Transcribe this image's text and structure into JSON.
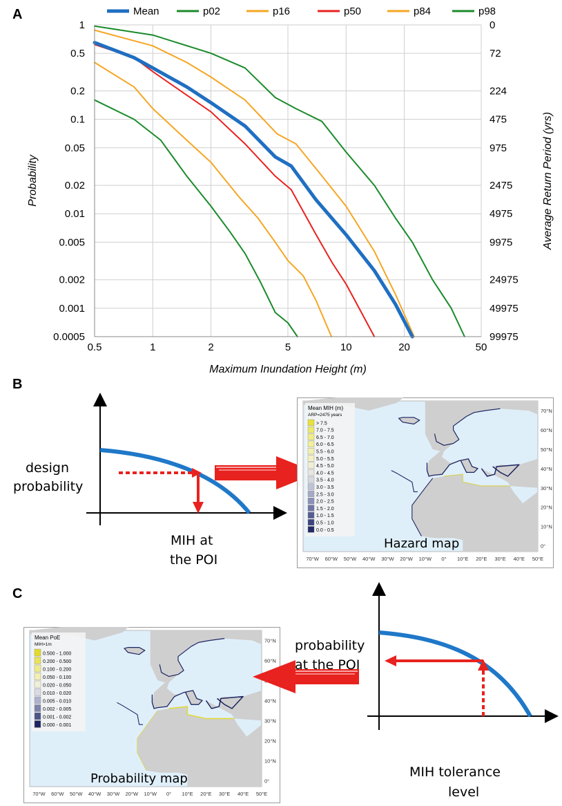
{
  "panel_labels": {
    "a": "A",
    "b": "B",
    "c": "C"
  },
  "chart_data": {
    "type": "line",
    "xscale": "log",
    "yscale": "log",
    "xlim": [
      0.5,
      50
    ],
    "ylim": [
      0.0005,
      1
    ],
    "xlabel": "Maximum Inundation Height (m)",
    "ylabel": "Probability",
    "y2label": "Average Return Period (yrs)",
    "grid": true,
    "legend_position": "top",
    "xticks": [
      0.5,
      1,
      2,
      5,
      10,
      20,
      50
    ],
    "xticklabels": [
      "0.5",
      "1",
      "2",
      "5",
      "10",
      "20",
      "50"
    ],
    "yticks": [
      1,
      0.5,
      0.2,
      0.1,
      0.05,
      0.02,
      0.01,
      0.005,
      0.002,
      0.001,
      0.0005
    ],
    "yticklabels": [
      "1",
      "0.5",
      "0.2",
      "0.1",
      "0.05",
      "0.02",
      "0.01",
      "0.005",
      "0.002",
      "0.001",
      "0.0005"
    ],
    "y2ticklabels": [
      "0",
      "72",
      "224",
      "475",
      "975",
      "2475",
      "4975",
      "9975",
      "24975",
      "49975",
      "99975"
    ],
    "series": [
      {
        "name": "Mean",
        "color": "#1f6fc2",
        "width": 5,
        "x": [
          0.5,
          0.8,
          1.0,
          1.5,
          2.0,
          3.0,
          4.3,
          5.2,
          7.0,
          10.0,
          14.0,
          18.0,
          22.0
        ],
        "y": [
          0.65,
          0.45,
          0.35,
          0.22,
          0.15,
          0.085,
          0.04,
          0.032,
          0.014,
          0.006,
          0.0025,
          0.0011,
          0.0005
        ]
      },
      {
        "name": "p02",
        "color": "#1a8a2a",
        "width": 2,
        "x": [
          0.5,
          0.8,
          1.1,
          1.5,
          2.0,
          2.5,
          3.0,
          3.6,
          4.3,
          5.0,
          5.6
        ],
        "y": [
          0.16,
          0.1,
          0.06,
          0.025,
          0.012,
          0.0065,
          0.0038,
          0.0019,
          0.0009,
          0.0007,
          0.0005
        ]
      },
      {
        "name": "p16",
        "color": "#f5a623",
        "width": 2,
        "x": [
          0.5,
          0.8,
          1.0,
          1.5,
          2.0,
          2.8,
          3.5,
          4.3,
          5.0,
          6.0,
          7.0,
          8.4
        ],
        "y": [
          0.4,
          0.22,
          0.13,
          0.06,
          0.035,
          0.015,
          0.009,
          0.005,
          0.0032,
          0.0022,
          0.0012,
          0.0005
        ]
      },
      {
        "name": "p50",
        "color": "#e8221f",
        "width": 2,
        "x": [
          0.5,
          0.8,
          1.0,
          1.5,
          2.0,
          3.0,
          4.3,
          5.2,
          7.0,
          8.5,
          10.0,
          12.0,
          14.0
        ],
        "y": [
          0.62,
          0.45,
          0.32,
          0.18,
          0.12,
          0.055,
          0.025,
          0.018,
          0.006,
          0.003,
          0.0018,
          0.0009,
          0.0005
        ]
      },
      {
        "name": "p84",
        "color": "#f5a623",
        "width": 2,
        "x": [
          0.5,
          1.0,
          1.5,
          2.0,
          3.0,
          4.4,
          5.5,
          7.0,
          10.0,
          14.0,
          18.0,
          22.5
        ],
        "y": [
          0.88,
          0.6,
          0.4,
          0.28,
          0.16,
          0.07,
          0.055,
          0.03,
          0.012,
          0.004,
          0.0014,
          0.0005
        ]
      },
      {
        "name": "p98",
        "color": "#1a8a2a",
        "width": 2,
        "x": [
          0.5,
          1.0,
          2.0,
          3.0,
          4.3,
          5.5,
          7.5,
          10.0,
          14.0,
          18.0,
          22.0,
          28.0,
          35.0,
          41.0
        ],
        "y": [
          0.97,
          0.78,
          0.5,
          0.35,
          0.17,
          0.13,
          0.095,
          0.045,
          0.02,
          0.009,
          0.005,
          0.002,
          0.001,
          0.0005
        ]
      }
    ]
  },
  "panel_b": {
    "design_probability": [
      "design",
      "probability"
    ],
    "mih_at_poi": [
      "MIH at",
      "the POI"
    ],
    "map_title": "Hazard map",
    "legend_title": "Mean MIH (m)",
    "legend_subtitle": "ARP=2475 years",
    "legend_items": [
      "> 7.5",
      "7.0 - 7.5",
      "6.5 - 7.0",
      "6.0 - 6.5",
      "5.5 - 6.0",
      "5.0 - 5.5",
      "4.5 - 5.0",
      "4.0 - 4.5",
      "3.5 - 4.0",
      "3.0 - 3.5",
      "2.5 - 3.0",
      "2.0 - 2.5",
      "1.5 - 2.0",
      "1.0 - 1.5",
      "0.5 - 1.0",
      "0.0 - 0.5"
    ],
    "legend_colors": [
      "#e8e23a",
      "#ecea6e",
      "#efed86",
      "#f1ef9c",
      "#f2f0b2",
      "#f3f1c4",
      "#f1f0d6",
      "#e8e8e0",
      "#d6d8e2",
      "#bfc3d8",
      "#a5aac9",
      "#8a90b8",
      "#6f76a6",
      "#555d93",
      "#3c4480",
      "#222b68"
    ],
    "lat_labels": [
      "70°N",
      "60°N",
      "50°N",
      "40°N",
      "30°N",
      "20°N",
      "10°N",
      "0°"
    ],
    "lon_labels": [
      "70°W",
      "60°W",
      "50°W",
      "40°W",
      "30°W",
      "20°W",
      "10°W",
      "0°",
      "10°E",
      "20°E",
      "30°E",
      "40°E",
      "50°E"
    ]
  },
  "panel_c": {
    "probability_at_poi": [
      "probability",
      "at the POI"
    ],
    "mih_tolerance": [
      "MIH tolerance",
      "level"
    ],
    "map_title": "Probability map",
    "legend_title": "Mean PoE",
    "legend_subtitle": "MIH>1m",
    "legend_items": [
      "0.500 - 1.000",
      "0.200 - 0.500",
      "0.100 - 0.200",
      "0.050 - 0.100",
      "0.020 - 0.050",
      "0.010 - 0.020",
      "0.005 - 0.010",
      "0.002 - 0.005",
      "0.001 - 0.002",
      "0.000 - 0.001"
    ],
    "legend_colors": [
      "#e2db2a",
      "#e8e25a",
      "#eeea8a",
      "#f2efb4",
      "#f0efd8",
      "#d8dae4",
      "#aeb2cc",
      "#7e84aa",
      "#4d5588",
      "#1d2560"
    ],
    "lat_labels": [
      "70°N",
      "60°N",
      "50°N",
      "40°N",
      "30°N",
      "20°N",
      "10°N",
      "0°"
    ],
    "lon_labels": [
      "70°W",
      "60°W",
      "50°W",
      "40°W",
      "30°W",
      "20°W",
      "10°W",
      "0°",
      "10°E",
      "20°E",
      "30°E",
      "40°E",
      "50°E"
    ]
  }
}
